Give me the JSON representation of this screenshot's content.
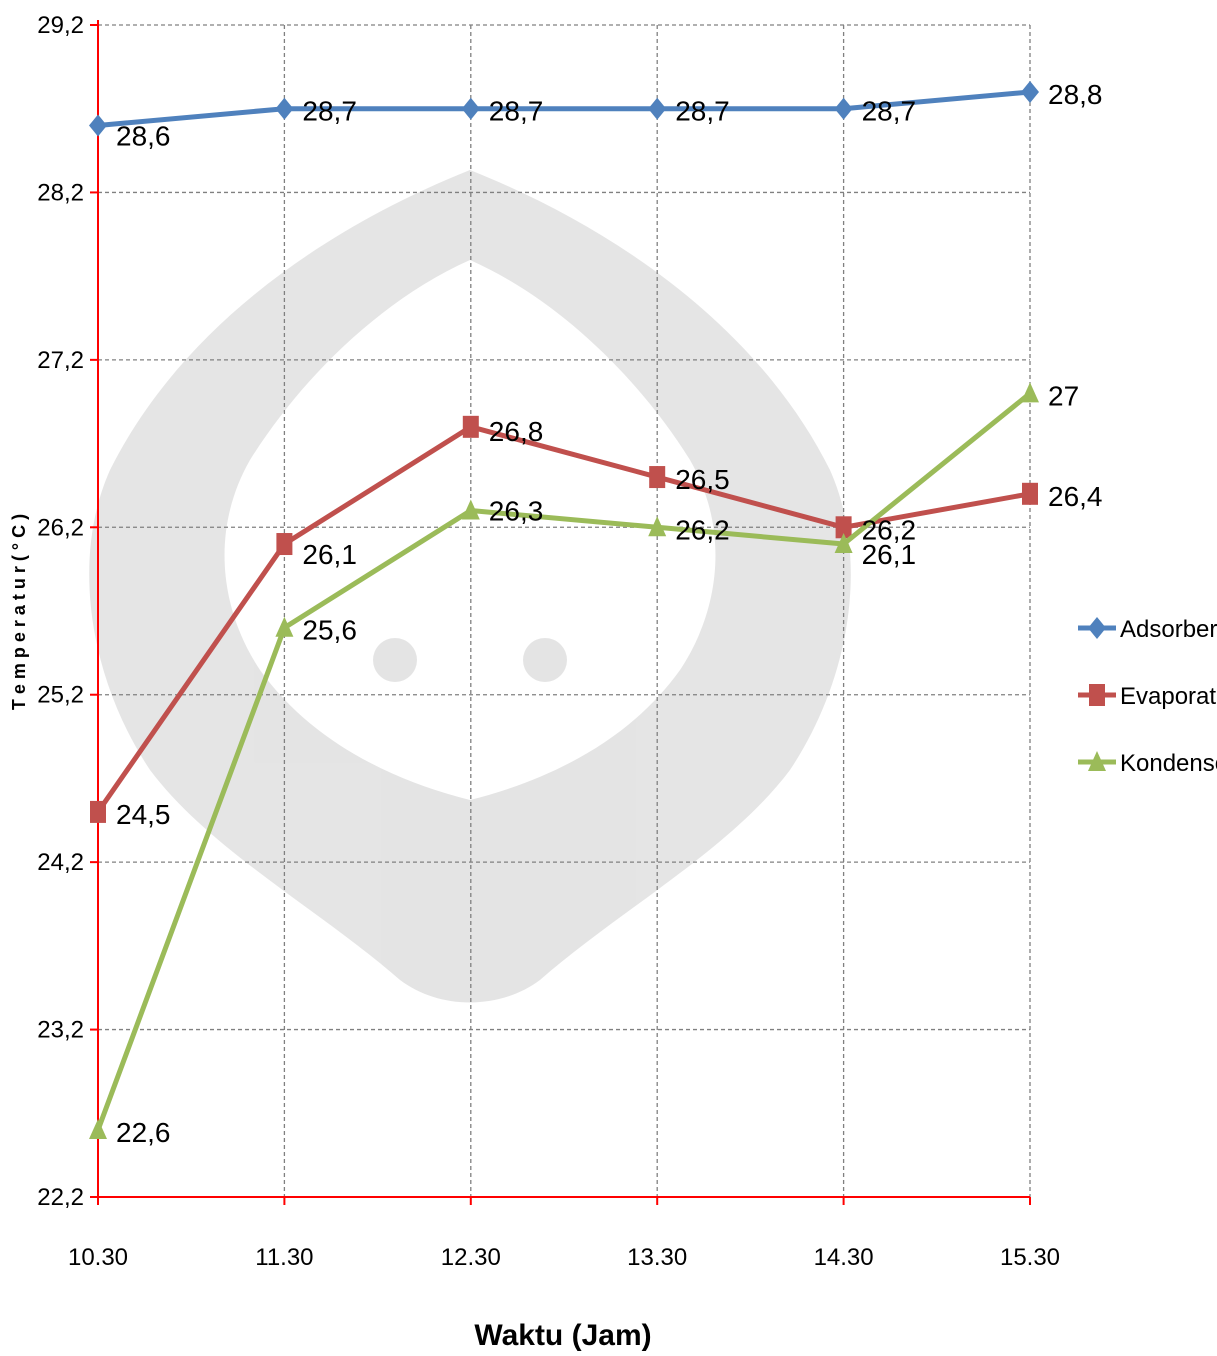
{
  "chart_data": {
    "type": "line",
    "categories": [
      "10.30",
      "11.30",
      "12.30",
      "13.30",
      "14.30",
      "15.30"
    ],
    "series": [
      {
        "name": "Adsorber",
        "color": "#4F81BD",
        "marker": "diamond",
        "values": [
          28.6,
          28.7,
          28.7,
          28.7,
          28.7,
          28.8
        ],
        "labels": [
          "28,6",
          "28,7",
          "28,7",
          "28,7",
          "28,7",
          "28,8"
        ]
      },
      {
        "name": "Evaporator",
        "color": "#C0504D",
        "marker": "square",
        "values": [
          24.5,
          26.1,
          26.8,
          26.5,
          26.2,
          26.4
        ],
        "labels": [
          "24,5",
          "26,1",
          "26,8",
          "26,5",
          "26,2",
          "26,4"
        ]
      },
      {
        "name": "Kondensor",
        "color": "#9BBB59",
        "marker": "triangle",
        "values": [
          22.6,
          25.6,
          26.3,
          26.2,
          26.1,
          27
        ],
        "labels": [
          "22,6",
          "25,6",
          "26,3",
          "26,2",
          "26,1",
          "27"
        ]
      }
    ],
    "xlabel": "Waktu (Jam)",
    "ylabel": "T e m p e r a t u r  ( ° C )",
    "ylim": [
      22.2,
      29.2
    ],
    "yticks": [
      22.2,
      23.2,
      24.2,
      25.2,
      26.2,
      27.2,
      28.2,
      29.2
    ],
    "ytick_labels": [
      "22,2",
      "23,2",
      "24,2",
      "25,2",
      "26,2",
      "27,2",
      "28,2",
      "29,2"
    ],
    "grid": true,
    "legend_position": "right",
    "axis_color": "#FF0000",
    "gridline_color": "#808080"
  }
}
